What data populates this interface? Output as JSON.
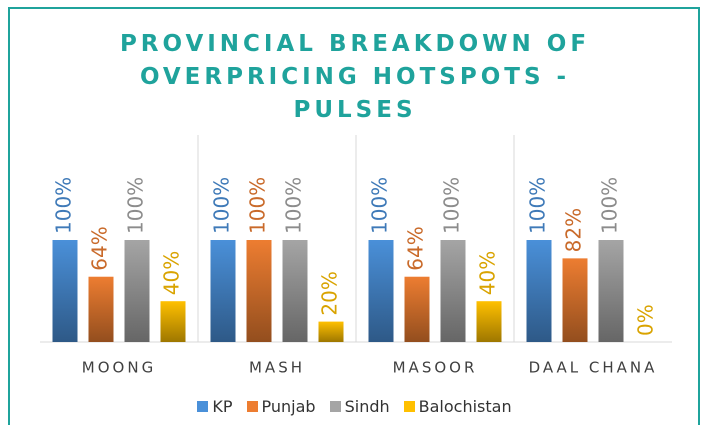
{
  "chart_data": {
    "type": "bar",
    "title": "PROVINCIAL BREAKDOWN OF OVERPRICING HOTSPOTS - PULSES",
    "categories": [
      "MOONG",
      "MASH",
      "MASOOR",
      "DAAL CHANA"
    ],
    "ylim": [
      0,
      100
    ],
    "series": [
      {
        "name": "KP",
        "color": "#4a90d9",
        "values": [
          100,
          100,
          100,
          100
        ],
        "value_labels": [
          "100%",
          "100%",
          "100%",
          "100%"
        ]
      },
      {
        "name": "Punjab",
        "color": "#ed7d31",
        "values": [
          64,
          100,
          64,
          82
        ],
        "value_labels": [
          "64%",
          "100%",
          "64%",
          "82%"
        ]
      },
      {
        "name": "Sindh",
        "color": "#a5a5a5",
        "values": [
          100,
          100,
          100,
          100
        ],
        "value_labels": [
          "100%",
          "100%",
          "100%",
          "100%"
        ]
      },
      {
        "name": "Balochistan",
        "color": "#ffc000",
        "values": [
          40,
          20,
          40,
          0
        ],
        "value_labels": [
          "40%",
          "20%",
          "40%",
          "0%"
        ]
      }
    ],
    "legend": "bottom"
  }
}
